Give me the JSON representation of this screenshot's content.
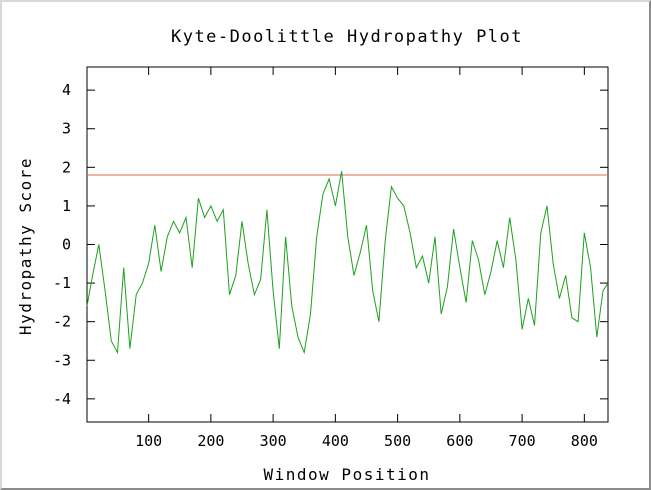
{
  "chart_data": {
    "type": "line",
    "title": "Kyte-Doolittle Hydropathy Plot",
    "xlabel": "Window Position",
    "ylabel": "Hydropathy Score",
    "xlim": [
      1,
      838
    ],
    "ylim": [
      -4.6,
      4.6
    ],
    "xticks": [
      100,
      200,
      300,
      400,
      500,
      600,
      700,
      800
    ],
    "yticks": [
      -4,
      -3,
      -2,
      -1,
      0,
      1,
      2,
      3,
      4
    ],
    "grid": false,
    "threshold": {
      "value": 1.8,
      "color": "#e06a52"
    },
    "series": [
      {
        "color": "#1ea01e",
        "x": [
          1,
          10,
          20,
          30,
          40,
          50,
          60,
          70,
          80,
          90,
          100,
          110,
          120,
          130,
          140,
          150,
          160,
          170,
          180,
          190,
          200,
          210,
          220,
          230,
          240,
          250,
          260,
          270,
          280,
          290,
          300,
          310,
          320,
          330,
          340,
          350,
          360,
          370,
          380,
          390,
          400,
          410,
          420,
          430,
          440,
          450,
          460,
          470,
          480,
          490,
          500,
          510,
          520,
          530,
          540,
          550,
          560,
          570,
          580,
          590,
          600,
          610,
          620,
          630,
          640,
          650,
          660,
          670,
          680,
          690,
          700,
          710,
          720,
          730,
          740,
          750,
          760,
          770,
          780,
          790,
          800,
          810,
          820,
          830,
          838
        ],
        "y": [
          -1.6,
          -0.8,
          0.0,
          -1.2,
          -2.5,
          -2.8,
          -0.6,
          -2.7,
          -1.3,
          -1.0,
          -0.5,
          0.5,
          -0.7,
          0.2,
          0.6,
          0.3,
          0.7,
          -0.6,
          1.2,
          0.7,
          1.0,
          0.6,
          0.9,
          -1.3,
          -0.8,
          0.6,
          -0.5,
          -1.3,
          -0.9,
          0.9,
          -1.2,
          -2.7,
          0.2,
          -1.6,
          -2.4,
          -2.8,
          -1.8,
          0.2,
          1.3,
          1.7,
          1.0,
          1.9,
          0.2,
          -0.8,
          -0.2,
          0.5,
          -1.2,
          -2.0,
          0.1,
          1.5,
          1.2,
          1.0,
          0.3,
          -0.6,
          -0.3,
          -1.0,
          0.2,
          -1.8,
          -1.1,
          0.4,
          -0.6,
          -1.5,
          0.1,
          -0.4,
          -1.3,
          -0.7,
          0.1,
          -0.6,
          0.7,
          -0.4,
          -2.2,
          -1.4,
          -2.1,
          0.3,
          1.0,
          -0.5,
          -1.4,
          -0.8,
          -1.9,
          -2.0,
          0.3,
          -0.6,
          -2.4,
          -1.2,
          -1.0
        ]
      }
    ]
  }
}
